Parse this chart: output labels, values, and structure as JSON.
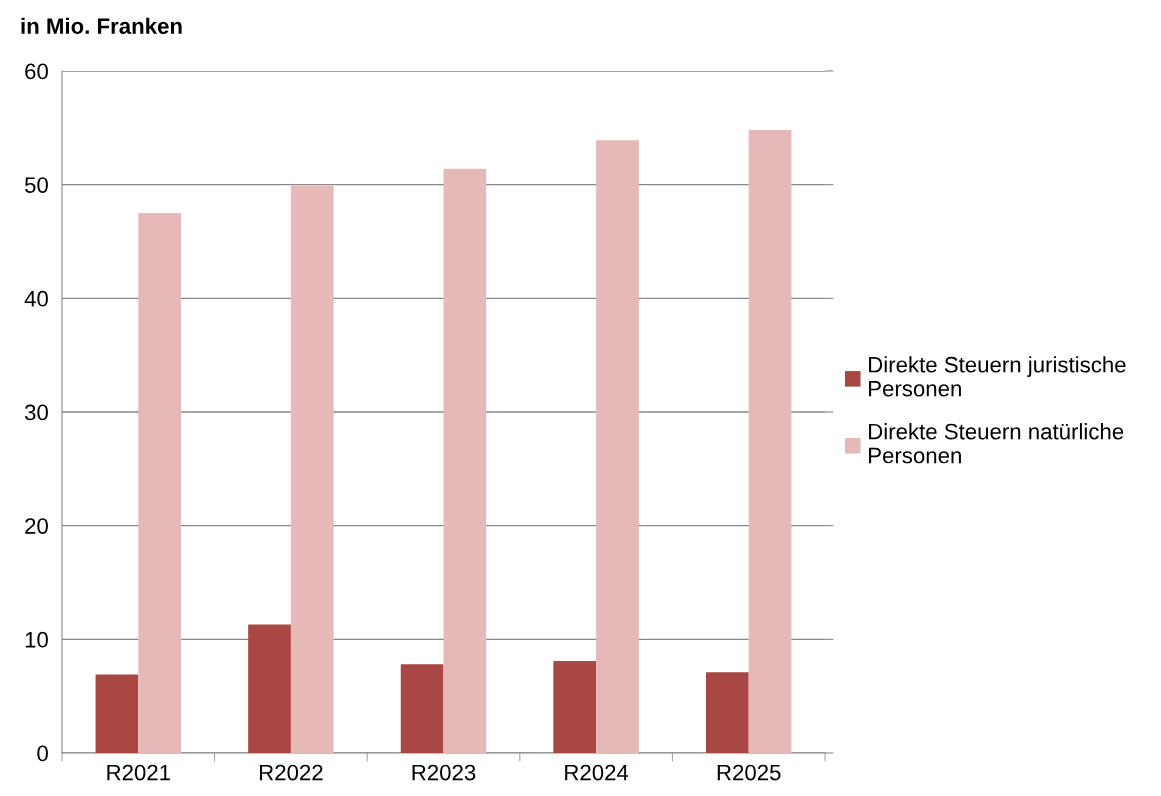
{
  "chart_data": {
    "type": "bar",
    "ylabel": "in Mio. Franken",
    "categories": [
      "R2021",
      "R2022",
      "R2023",
      "R2024",
      "R2025"
    ],
    "series": [
      {
        "name": "Direkte Steuern juristische\nPersonen",
        "color": "#a94744",
        "values": [
          6.9,
          11.3,
          7.8,
          8.1,
          7.1
        ]
      },
      {
        "name": "Direkte Steuern natürliche\nPersonen",
        "color": "#e6b9b8",
        "values": [
          47.5,
          49.9,
          51.4,
          53.9,
          54.8
        ]
      }
    ],
    "ylim": [
      0,
      60
    ],
    "yticks": [
      0,
      10,
      20,
      30,
      40,
      50,
      60
    ],
    "grid": "y",
    "legend": "right"
  }
}
